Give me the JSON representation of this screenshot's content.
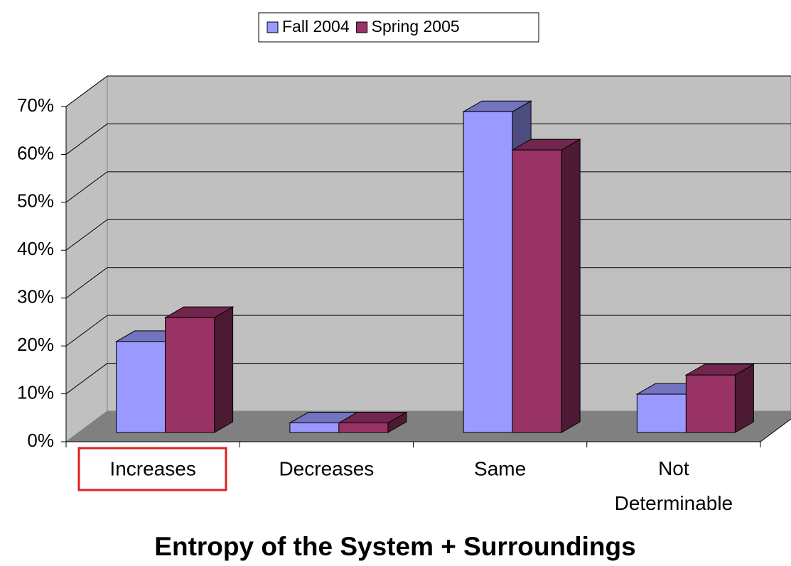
{
  "chart_data": {
    "type": "bar3d",
    "title": "Entropy of the System + Surroundings",
    "categories": [
      "Increases",
      "Decreases",
      "Same",
      "Not Determinable"
    ],
    "series": [
      {
        "name": "Fall 2004",
        "color": "#9999ff",
        "values": [
          19,
          2,
          67,
          8
        ]
      },
      {
        "name": "Spring 2005",
        "color": "#993366",
        "values": [
          24,
          2,
          59,
          12
        ]
      }
    ],
    "ylim": [
      0,
      70
    ],
    "yticks": [
      {
        "value": 0,
        "label": "0%"
      },
      {
        "value": 10,
        "label": "10%"
      },
      {
        "value": 20,
        "label": "20%"
      },
      {
        "value": 30,
        "label": "30%"
      },
      {
        "value": 40,
        "label": "40%"
      },
      {
        "value": 50,
        "label": "50%"
      },
      {
        "value": 60,
        "label": "60%"
      },
      {
        "value": 70,
        "label": "70%"
      }
    ],
    "grid": true,
    "legend": "top"
  }
}
